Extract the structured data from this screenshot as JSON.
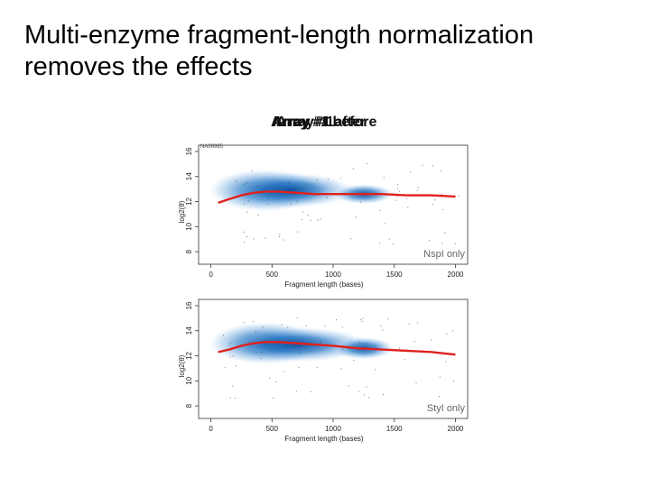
{
  "slide": {
    "title": "Multi-enzyme fragment-length normalization removes the effects",
    "overlay_labels": [
      "Array #1 before",
      "Array #1 after",
      "Array #1 "
    ]
  },
  "chart_data": [
    {
      "type": "scatter",
      "sample_label": "NA06985",
      "annotation": "NspI only",
      "xlabel": "Fragment length (bases)",
      "ylabel": "log2(θ)",
      "xlim": [
        -100,
        2100
      ],
      "ylim": [
        7,
        16.5
      ],
      "xticks": [
        0,
        500,
        1000,
        1500,
        2000
      ],
      "yticks": [
        8,
        10,
        12,
        14,
        16
      ],
      "grid": false,
      "density": [
        {
          "x": 450,
          "y": 12.9,
          "rx": 470,
          "ry": 1.7
        },
        {
          "x": 650,
          "y": 12.9,
          "rx": 520,
          "ry": 1.4
        },
        {
          "x": 1250,
          "y": 12.6,
          "rx": 250,
          "ry": 0.8
        }
      ],
      "series": [
        {
          "x": [
            60,
            150,
            250,
            350,
            450,
            550,
            700,
            850,
            1000,
            1200,
            1400,
            1600,
            1800,
            2000
          ],
          "y": [
            11.9,
            12.2,
            12.5,
            12.7,
            12.8,
            12.8,
            12.7,
            12.6,
            12.6,
            12.6,
            12.6,
            12.5,
            12.5,
            12.4
          ]
        }
      ],
      "color": "#e0201c",
      "density_color": "#0d4f9c"
    },
    {
      "type": "scatter",
      "sample_label": "",
      "annotation": "StyI only",
      "xlabel": "Fragment length (bases)",
      "ylabel": "log2(θ)",
      "xlim": [
        -100,
        2100
      ],
      "ylim": [
        7,
        16.5
      ],
      "xticks": [
        0,
        500,
        1000,
        1500,
        2000
      ],
      "yticks": [
        8,
        10,
        12,
        14,
        16
      ],
      "grid": false,
      "density": [
        {
          "x": 450,
          "y": 13.0,
          "rx": 470,
          "ry": 1.7
        },
        {
          "x": 700,
          "y": 12.9,
          "rx": 600,
          "ry": 1.4
        },
        {
          "x": 1250,
          "y": 12.6,
          "rx": 250,
          "ry": 0.9
        }
      ],
      "series": [
        {
          "x": [
            60,
            150,
            250,
            350,
            450,
            550,
            700,
            850,
            1000,
            1200,
            1400,
            1600,
            1800,
            2000
          ],
          "y": [
            12.3,
            12.5,
            12.8,
            13.0,
            13.1,
            13.1,
            13.0,
            12.9,
            12.8,
            12.6,
            12.5,
            12.4,
            12.3,
            12.1
          ]
        }
      ],
      "color": "#e0201c",
      "density_color": "#0d4f9c"
    }
  ]
}
